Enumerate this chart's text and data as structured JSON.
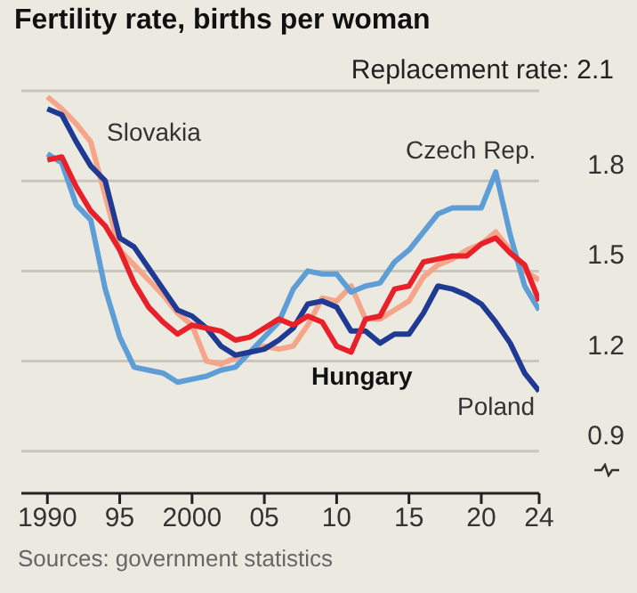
{
  "chart_data": {
    "type": "line",
    "title": "Fertility rate, births per woman",
    "annotations": [
      "Replacement rate: 2.1",
      "Sources: government statistics"
    ],
    "x": [
      1990,
      1991,
      1992,
      1993,
      1994,
      1995,
      1996,
      1997,
      1998,
      1999,
      2000,
      2001,
      2002,
      2003,
      2004,
      2005,
      2006,
      2007,
      2008,
      2009,
      2010,
      2011,
      2012,
      2013,
      2014,
      2015,
      2016,
      2017,
      2018,
      2019,
      2020,
      2021,
      2022,
      2023,
      2024
    ],
    "series": [
      {
        "name": "Slovakia",
        "color": "#f4a58a",
        "values": [
          2.08,
          2.04,
          1.99,
          1.93,
          1.75,
          1.57,
          1.52,
          1.47,
          1.42,
          1.36,
          1.32,
          1.2,
          1.19,
          1.21,
          1.23,
          1.25,
          1.24,
          1.25,
          1.32,
          1.41,
          1.4,
          1.45,
          1.34,
          1.34,
          1.37,
          1.4,
          1.48,
          1.52,
          1.54,
          1.57,
          1.59,
          1.63,
          1.57,
          1.5,
          1.47
        ]
      },
      {
        "name": "Czech Rep.",
        "color": "#5e9ed6",
        "values": [
          1.89,
          1.86,
          1.72,
          1.67,
          1.44,
          1.28,
          1.18,
          1.17,
          1.16,
          1.13,
          1.14,
          1.15,
          1.17,
          1.18,
          1.23,
          1.28,
          1.33,
          1.44,
          1.5,
          1.49,
          1.49,
          1.43,
          1.45,
          1.46,
          1.53,
          1.57,
          1.63,
          1.69,
          1.71,
          1.71,
          1.71,
          1.83,
          1.62,
          1.45,
          1.37
        ]
      },
      {
        "name": "Poland",
        "color": "#1f3a93",
        "values": [
          2.04,
          2.02,
          1.93,
          1.85,
          1.8,
          1.61,
          1.58,
          1.51,
          1.44,
          1.37,
          1.35,
          1.31,
          1.25,
          1.22,
          1.23,
          1.24,
          1.27,
          1.31,
          1.39,
          1.4,
          1.38,
          1.3,
          1.3,
          1.26,
          1.29,
          1.29,
          1.36,
          1.45,
          1.44,
          1.42,
          1.39,
          1.33,
          1.26,
          1.16,
          1.1
        ]
      },
      {
        "name": "Hungary",
        "color": "#e8202a",
        "values": [
          1.87,
          1.88,
          1.78,
          1.7,
          1.65,
          1.57,
          1.46,
          1.38,
          1.33,
          1.29,
          1.32,
          1.31,
          1.3,
          1.27,
          1.28,
          1.31,
          1.34,
          1.32,
          1.35,
          1.33,
          1.25,
          1.23,
          1.34,
          1.35,
          1.44,
          1.45,
          1.53,
          1.54,
          1.55,
          1.55,
          1.59,
          1.61,
          1.56,
          1.52,
          1.4
        ]
      }
    ],
    "xlim": [
      1988.2,
      2024
    ],
    "xticks": [
      1990,
      {
        "value": 1995,
        "label": "95"
      },
      2000,
      {
        "value": 2005,
        "label": "05"
      },
      {
        "value": 2010,
        "label": "10"
      },
      {
        "value": 2015,
        "label": "15"
      },
      {
        "value": 2020,
        "label": "20"
      },
      {
        "value": 2024,
        "label": "24"
      }
    ],
    "ylim": [
      0.76,
      2.1
    ],
    "yticks": [
      0.9,
      1.2,
      1.5,
      1.8,
      {
        "value": 2.1,
        "label": null
      }
    ],
    "grid": "y",
    "marker": "none",
    "line_style": "solid"
  }
}
